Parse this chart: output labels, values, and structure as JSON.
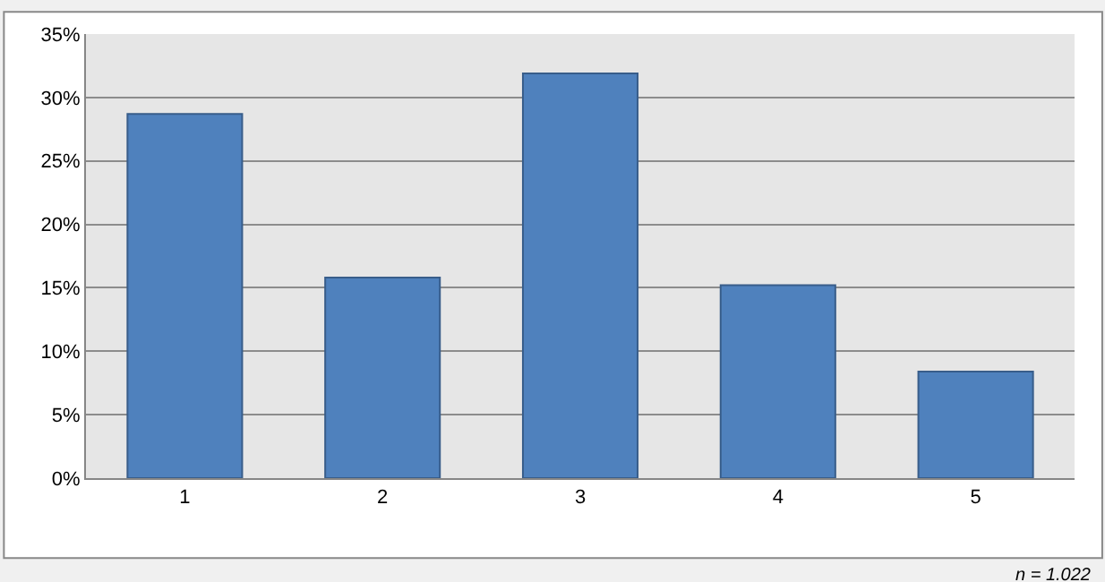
{
  "chart_data": {
    "type": "bar",
    "categories": [
      "1",
      "2",
      "3",
      "4",
      "5"
    ],
    "values": [
      28.7,
      15.8,
      31.9,
      15.2,
      8.4
    ],
    "color": "#4f81bd",
    "ylim": [
      0,
      35
    ],
    "yticks": [
      {
        "value": 0,
        "label": "0%"
      },
      {
        "value": 5,
        "label": "5%"
      },
      {
        "value": 10,
        "label": "10%"
      },
      {
        "value": 15,
        "label": "15%"
      },
      {
        "value": 20,
        "label": "20%"
      },
      {
        "value": 25,
        "label": "25%"
      },
      {
        "value": 30,
        "label": "30%"
      },
      {
        "value": 35,
        "label": "35%"
      }
    ],
    "grid": "y",
    "annotations": [
      "n = 1.022"
    ]
  }
}
